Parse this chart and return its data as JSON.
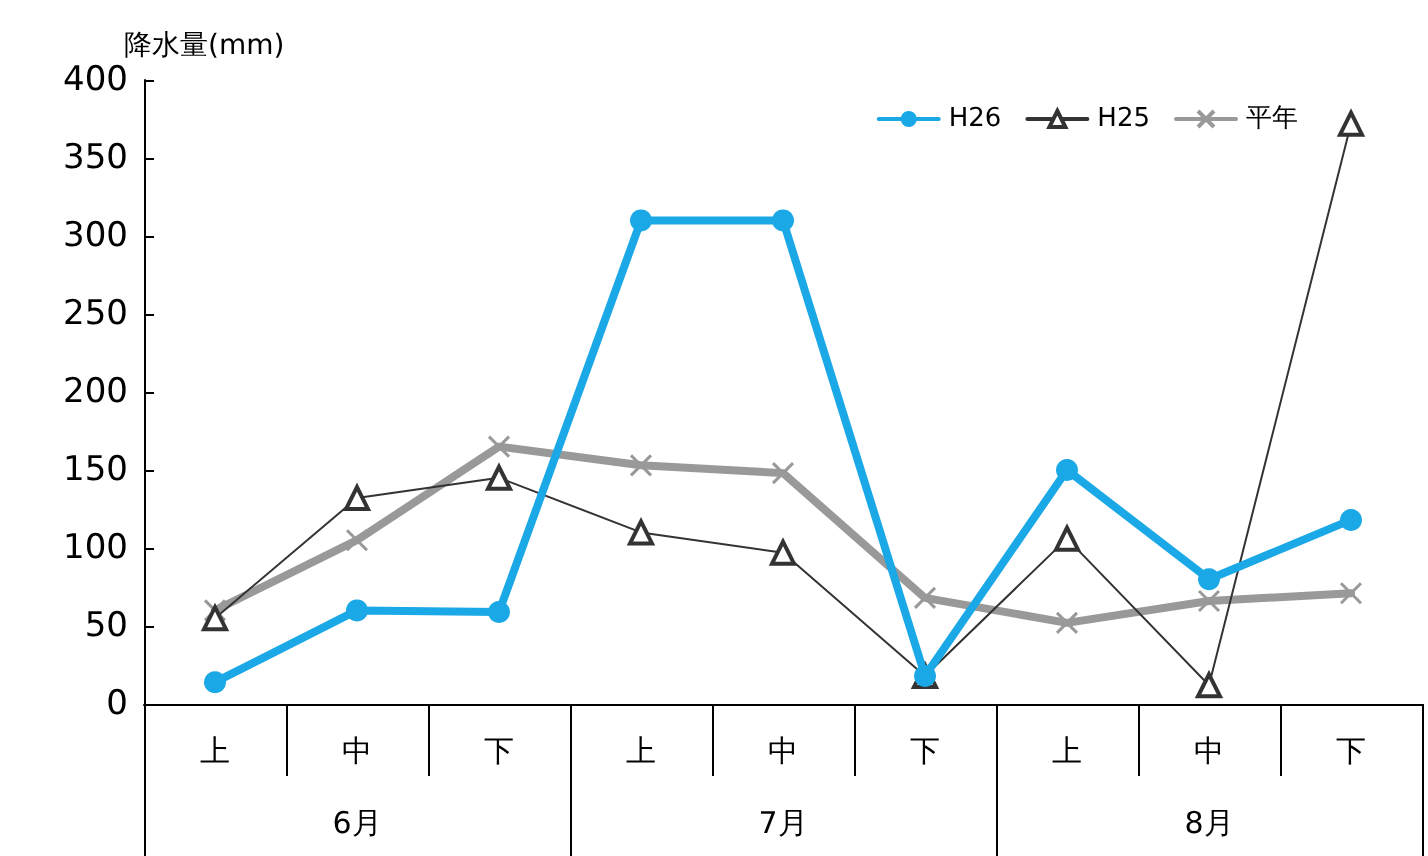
{
  "chart_data": {
    "type": "line",
    "ylabel": "降水量(mm)",
    "categories": [
      "上",
      "中",
      "下",
      "上",
      "中",
      "下",
      "上",
      "中",
      "下"
    ],
    "annotations": [
      "6月",
      "7月",
      "8月"
    ],
    "series": [
      {
        "name": "H26",
        "color": "#1aa8e6",
        "marker": "circle",
        "values": [
          14,
          60,
          59,
          310,
          310,
          18,
          150,
          80,
          118
        ]
      },
      {
        "name": "H25",
        "color": "#333333",
        "marker": "triangle",
        "values": [
          55,
          132,
          145,
          110,
          97,
          18,
          106,
          12,
          372
        ]
      },
      {
        "name": "平年",
        "color": "#999999",
        "marker": "cross",
        "values": [
          60,
          105,
          165,
          153,
          148,
          68,
          52,
          66,
          71
        ]
      }
    ],
    "ylim": [
      0,
      400
    ],
    "yticks": [
      0,
      50,
      100,
      150,
      200,
      250,
      300,
      350,
      400
    ],
    "grid": false,
    "legend": "top right"
  }
}
